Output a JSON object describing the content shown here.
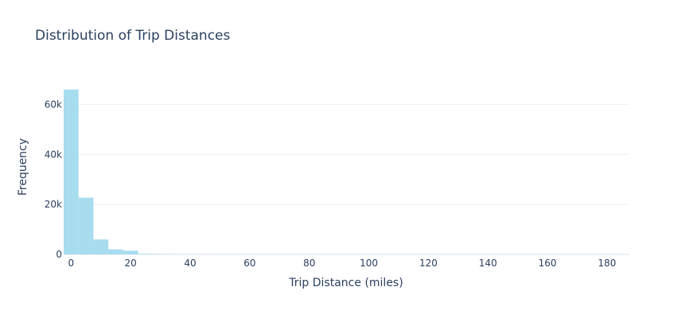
{
  "chart_data": {
    "type": "bar",
    "title": "Distribution of Trip Distances",
    "xlabel": "Trip Distance (miles)",
    "ylabel": "Frequency",
    "bar_color": "#a8dcef",
    "grid": true,
    "xlim": [
      -2.5,
      187.5
    ],
    "ylim": [
      0,
      70000
    ],
    "x_ticks": [
      0,
      20,
      40,
      60,
      80,
      100,
      120,
      140,
      160,
      180
    ],
    "x_tick_labels": [
      "0",
      "20",
      "40",
      "60",
      "80",
      "100",
      "120",
      "140",
      "160",
      "180"
    ],
    "y_ticks": [
      0,
      20000,
      40000,
      60000
    ],
    "y_tick_labels": [
      "0",
      "20k",
      "40k",
      "60k"
    ],
    "bin_width": 5,
    "bins": [
      {
        "start": -2.5,
        "end": 2.5,
        "value": 66000
      },
      {
        "start": 2.5,
        "end": 7.5,
        "value": 22700
      },
      {
        "start": 7.5,
        "end": 12.5,
        "value": 6000
      },
      {
        "start": 12.5,
        "end": 17.5,
        "value": 2000
      },
      {
        "start": 17.5,
        "end": 22.5,
        "value": 1500
      },
      {
        "start": 22.5,
        "end": 27.5,
        "value": 200
      },
      {
        "start": 27.5,
        "end": 32.5,
        "value": 100
      },
      {
        "start": 32.5,
        "end": 37.5,
        "value": 50
      },
      {
        "start": 37.5,
        "end": 42.5,
        "value": 30
      },
      {
        "start": 42.5,
        "end": 47.5,
        "value": 20
      },
      {
        "start": 47.5,
        "end": 52.5,
        "value": 10
      }
    ]
  }
}
